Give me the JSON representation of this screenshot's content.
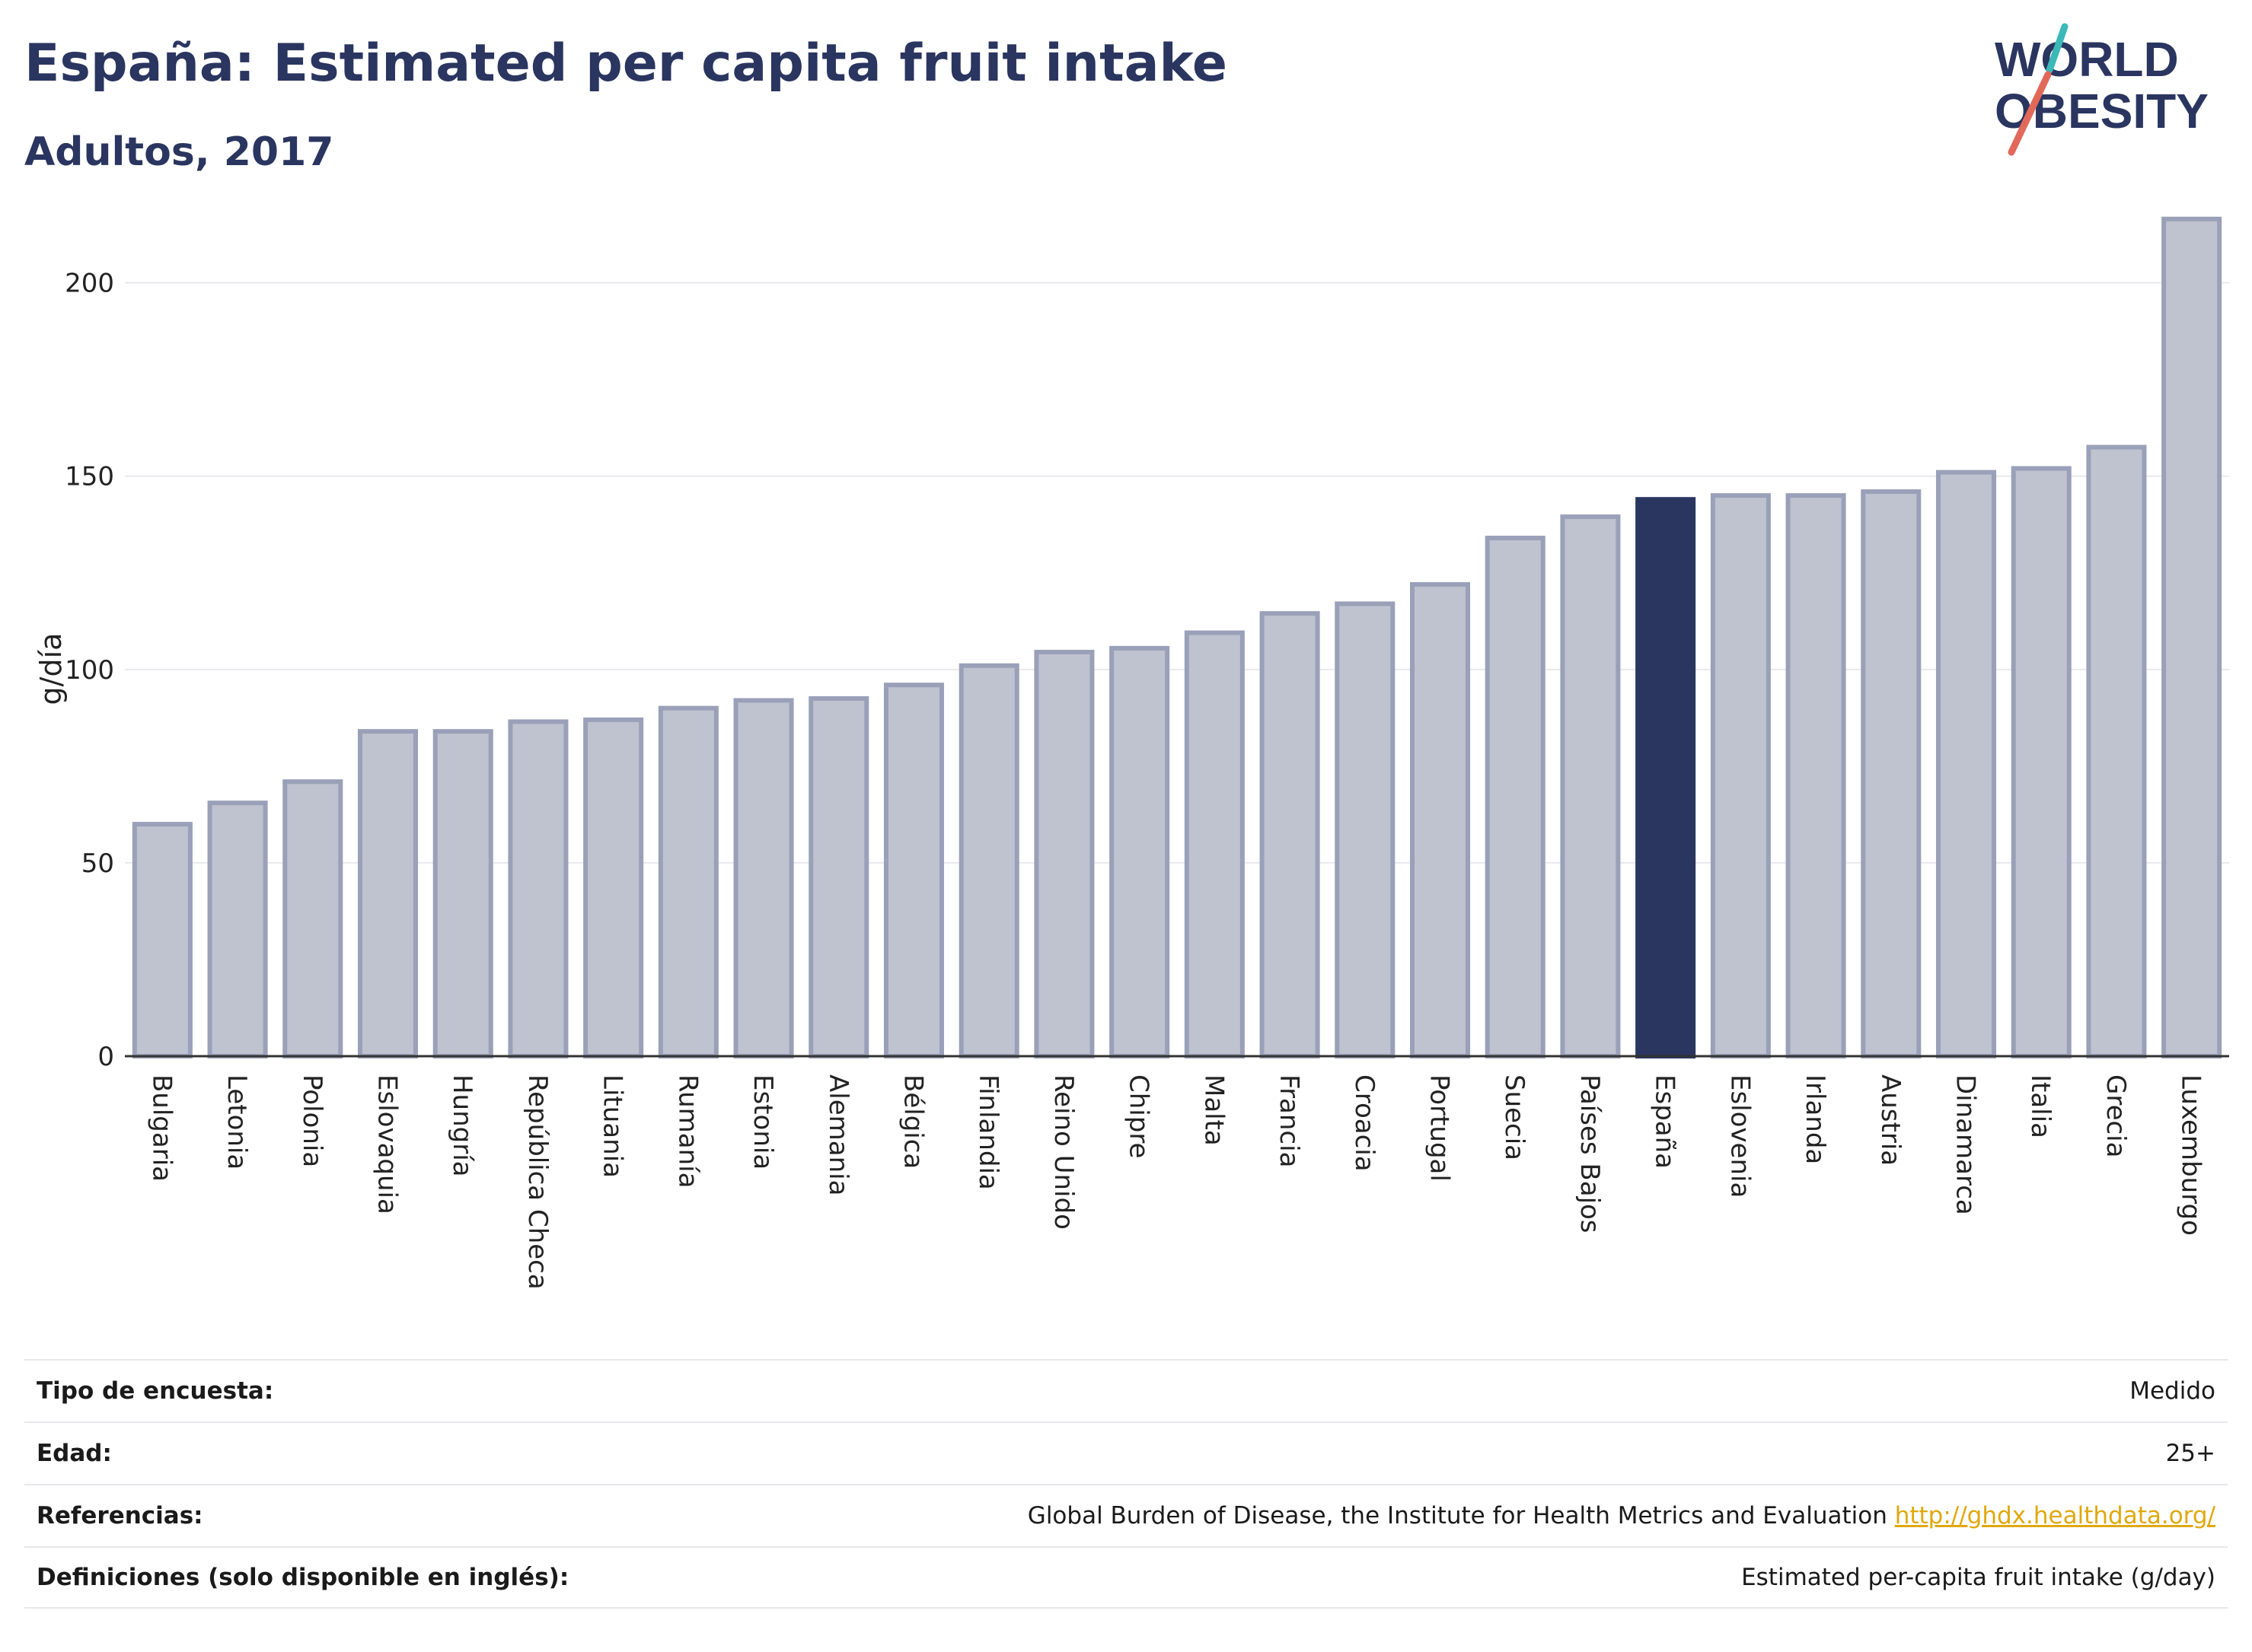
{
  "header": {
    "title": "España: Estimated per capita fruit intake",
    "subtitle": "Adultos, 2017"
  },
  "logo": {
    "line1": "WORLD",
    "line2": "OBESITY"
  },
  "colors": {
    "highlight": "#2a3560",
    "bar_fill": "#bfc2cf",
    "bar_stroke": "#9aa0b8",
    "grid": "#e8e9ee",
    "logo_text": "#2a3560",
    "logo_slash_teal": "#3bb8b8",
    "logo_slash_red": "#e2685a"
  },
  "chart_data": {
    "type": "bar",
    "ylabel": "g/día",
    "ylim": [
      0,
      220
    ],
    "yticks": [
      0,
      50,
      100,
      150,
      200
    ],
    "grid": true,
    "highlight_category": "España",
    "categories": [
      "Bulgaria",
      "Letonia",
      "Polonia",
      "Eslovaquia",
      "Hungría",
      "República Checa",
      "Lituania",
      "Rumanía",
      "Estonia",
      "Alemania",
      "Bélgica",
      "Finlandia",
      "Reino Unido",
      "Chipre",
      "Malta",
      "Francia",
      "Croacia",
      "Portugal",
      "Suecia",
      "Países Bajos",
      "España",
      "Eslovenia",
      "Irlanda",
      "Austria",
      "Dinamarca",
      "Italia",
      "Grecia",
      "Luxemburgo"
    ],
    "values": [
      60,
      65.5,
      71,
      84,
      84,
      86.5,
      87,
      90,
      92,
      92.5,
      96,
      101,
      104.5,
      105.5,
      109.5,
      114.5,
      117,
      122,
      134,
      139.5,
      144,
      145,
      145,
      146,
      151,
      152,
      157.5,
      216.5
    ]
  },
  "info": {
    "survey_label": "Tipo de encuesta:",
    "survey_value": "Medido",
    "age_label": "Edad:",
    "age_value": "25+",
    "refs_label": "Referencias:",
    "refs_value": "Global Burden of Disease, the Institute for Health Metrics and Evaluation",
    "refs_link": "http://ghdx.healthdata.org/",
    "defs_label": "Definiciones (solo disponible en inglés):",
    "defs_value": "Estimated per-capita fruit intake (g/day)"
  }
}
